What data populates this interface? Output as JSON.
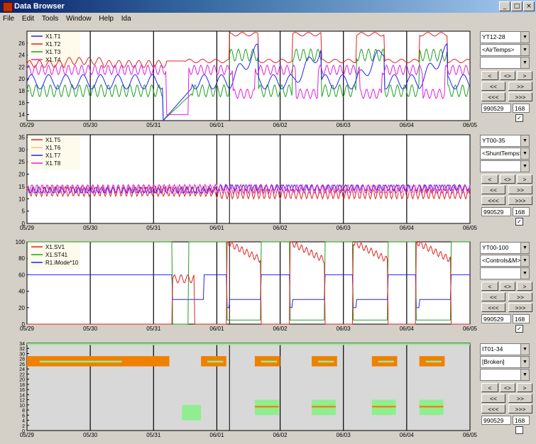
{
  "window": {
    "title": "Data Browser",
    "minimize": "_",
    "maximize": "□",
    "close": "×"
  },
  "menu": [
    "File",
    "Edit",
    "Tools",
    "Window",
    "Help",
    "Ida"
  ],
  "x_ticks": [
    "05/29",
    "05/30",
    "05/31",
    "06/01",
    "06/02",
    "06/03",
    "06/04",
    "06/05"
  ],
  "colors": {
    "red": "#e02020",
    "green": "#20a020",
    "blue": "#2020ff",
    "magenta": "#e020e0",
    "orange": "#f08000",
    "lightgreen": "#90ee90"
  },
  "panels": [
    {
      "id": "p1",
      "yticks": [
        14,
        16,
        18,
        20,
        22,
        24,
        26
      ],
      "ymin": 13,
      "ymax": 28,
      "legend": [
        "X1.T1",
        "X1.T2",
        "X1.T3",
        "X1.T4"
      ],
      "ctrl": {
        "range": "YT12-28",
        "group": "<AirTemps>",
        "blank": "",
        "start": "990529",
        "len": "168",
        "checked": "✓"
      }
    },
    {
      "id": "p2",
      "yticks": [
        0,
        5,
        10,
        15,
        20,
        25,
        30,
        35
      ],
      "ymin": 0,
      "ymax": 36,
      "legend": [
        "X1.T5",
        "X1.T6",
        "X1.T7",
        "X1.T8"
      ],
      "ctrl": {
        "range": "YT00-35",
        "group": "<ShuntTemps>",
        "blank": "",
        "start": "990529",
        "len": "168",
        "checked": "✓"
      }
    },
    {
      "id": "p3",
      "yticks": [
        0,
        20,
        40,
        60,
        80,
        100
      ],
      "ymin": 0,
      "ymax": 100,
      "legend": [
        "X1.SV1",
        "X1.ST41",
        "R1.iMode*10"
      ],
      "ctrl": {
        "range": "YT00-100",
        "group": "<Controls&M>",
        "blank": "",
        "start": "990529",
        "len": "168",
        "checked": "✓"
      }
    },
    {
      "id": "p4",
      "yticks": [
        0,
        2,
        4,
        6,
        8,
        10,
        12,
        14,
        16,
        18,
        20,
        22,
        24,
        26,
        28,
        30,
        32,
        34
      ],
      "ymin": 0,
      "ymax": 34,
      "legend": [],
      "ctrl": {
        "range": "IT01-34",
        "group": "[Broken]",
        "blank": "",
        "start": "990529",
        "len": "168",
        "checked": ""
      }
    }
  ],
  "nav": {
    "prev": "<",
    "center": "<>",
    "next": ">",
    "prev2": "<<",
    "next2": ">>",
    "prev3": "<<<",
    "next3": ">>>"
  }
}
